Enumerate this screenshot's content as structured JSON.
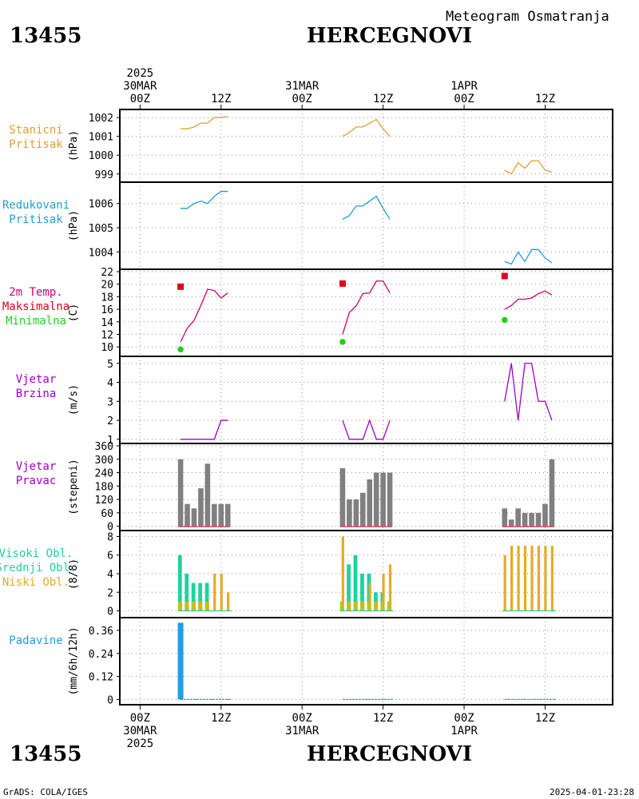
{
  "header": {
    "station_id": "13455",
    "station_name": "HERCEGNOVI",
    "subtitle": "Meteogram Osmatranja"
  },
  "footer": {
    "credit": "GrADS: COLA/IGES",
    "timestamp": "2025-04-01-23:28"
  },
  "time_axis": {
    "top_labels": [
      {
        "t": 0,
        "lines": [
          "2025",
          "30MAR",
          "00Z"
        ]
      },
      {
        "t": 12,
        "lines": [
          "12Z"
        ]
      },
      {
        "t": 24,
        "lines": [
          "31MAR",
          "00Z"
        ]
      },
      {
        "t": 36,
        "lines": [
          "12Z"
        ]
      },
      {
        "t": 48,
        "lines": [
          "1APR",
          "00Z"
        ]
      },
      {
        "t": 60,
        "lines": [
          "12Z"
        ]
      }
    ],
    "bottom_labels": [
      {
        "t": 0,
        "lines": [
          "00Z",
          "30MAR",
          "2025"
        ]
      },
      {
        "t": 12,
        "lines": [
          "12Z"
        ]
      },
      {
        "t": 24,
        "lines": [
          "00Z",
          "31MAR"
        ]
      },
      {
        "t": 36,
        "lines": [
          "12Z"
        ]
      },
      {
        "t": 48,
        "lines": [
          "00Z",
          "1APR"
        ]
      },
      {
        "t": 60,
        "lines": [
          "12Z"
        ]
      }
    ],
    "range_hours": [
      -3,
      70
    ],
    "grid_hours": [
      0,
      12,
      24,
      36,
      48,
      60
    ]
  },
  "colors": {
    "pressure_station": "#e0a030",
    "pressure_reduced": "#1ea0d2",
    "temperature": "#d2006e",
    "tmax": "#e6001e",
    "tmin": "#1ed21e",
    "wind_speed": "#a000c8",
    "wind_dir_bar": "#808080",
    "high_cloud": "#1ed2a0",
    "mid_cloud": "#a0d21e",
    "low_cloud": "#e6aa28",
    "precip": "#1e9fe6",
    "grid": "#909090"
  },
  "chart_data": [
    {
      "type": "line",
      "panel_label": [
        "Stanicni",
        "Pritisak"
      ],
      "ylabel": "(hPa)",
      "yticks": [
        999,
        1000,
        1001,
        1002
      ],
      "ylim": [
        998.65,
        1002.3
      ],
      "series": [
        {
          "segments": [
            [
              [
                6,
                1001.4
              ],
              [
                7,
                1001.4
              ],
              [
                8,
                1001.5
              ],
              [
                9,
                1001.7
              ],
              [
                10,
                1001.7
              ],
              [
                11,
                1002.0
              ],
              [
                12,
                1002.0
              ],
              [
                13,
                1002.05
              ]
            ],
            [
              [
                30,
                1001.0
              ],
              [
                31,
                1001.2
              ],
              [
                32,
                1001.5
              ],
              [
                33,
                1001.5
              ],
              [
                34,
                1001.7
              ],
              [
                35,
                1001.9
              ],
              [
                36,
                1001.4
              ],
              [
                37,
                1001.0
              ]
            ],
            [
              [
                54,
                999.2
              ],
              [
                55,
                999.0
              ],
              [
                56,
                999.6
              ],
              [
                57,
                999.3
              ],
              [
                58,
                999.7
              ],
              [
                59,
                999.7
              ],
              [
                60,
                999.2
              ],
              [
                61,
                999.1
              ]
            ]
          ]
        }
      ]
    },
    {
      "type": "line",
      "panel_label": [
        "Redukovani",
        "Pritisak"
      ],
      "ylabel": "(hPa)",
      "yticks": [
        1004,
        1005,
        1006
      ],
      "ylim": [
        1003.45,
        1006.75
      ],
      "series": [
        {
          "segments": [
            [
              [
                6,
                1005.8
              ],
              [
                7,
                1005.8
              ],
              [
                8,
                1006.0
              ],
              [
                9,
                1006.1
              ],
              [
                10,
                1006.0
              ],
              [
                11,
                1006.3
              ],
              [
                12,
                1006.5
              ],
              [
                13,
                1006.5
              ]
            ],
            [
              [
                30,
                1005.35
              ],
              [
                31,
                1005.5
              ],
              [
                32,
                1005.9
              ],
              [
                33,
                1005.9
              ],
              [
                34,
                1006.1
              ],
              [
                35,
                1006.3
              ],
              [
                36,
                1005.8
              ],
              [
                37,
                1005.35
              ]
            ],
            [
              [
                54,
                1003.6
              ],
              [
                55,
                1003.5
              ],
              [
                56,
                1004.0
              ],
              [
                57,
                1003.6
              ],
              [
                58,
                1004.1
              ],
              [
                59,
                1004.1
              ],
              [
                60,
                1003.75
              ],
              [
                61,
                1003.55
              ]
            ]
          ]
        }
      ]
    },
    {
      "type": "line",
      "panel_label": [
        "2m Temp.",
        "Maksimalna",
        "Minimalna"
      ],
      "ylabel": "(C)",
      "yticks": [
        10,
        12,
        14,
        16,
        18,
        20,
        22
      ],
      "ylim": [
        9.0,
        22.0
      ],
      "series": [
        {
          "segments": [
            [
              [
                6,
                10.8
              ],
              [
                7,
                13.0
              ],
              [
                8,
                14.2
              ],
              [
                9,
                16.6
              ],
              [
                10,
                19.2
              ],
              [
                11,
                19.0
              ],
              [
                12,
                17.8
              ],
              [
                13,
                18.6
              ]
            ],
            [
              [
                30,
                12.0
              ],
              [
                31,
                15.5
              ],
              [
                32,
                16.5
              ],
              [
                33,
                18.5
              ],
              [
                34,
                18.6
              ],
              [
                35,
                20.5
              ],
              [
                36,
                20.5
              ],
              [
                37,
                18.6
              ]
            ],
            [
              [
                54,
                16.0
              ],
              [
                55,
                16.6
              ],
              [
                56,
                17.6
              ],
              [
                57,
                17.6
              ],
              [
                58,
                17.8
              ],
              [
                59,
                18.5
              ],
              [
                60,
                18.9
              ],
              [
                61,
                18.3
              ]
            ]
          ]
        }
      ],
      "max_markers": [
        [
          6,
          19.6
        ],
        [
          30,
          20.1
        ],
        [
          54,
          21.3
        ]
      ],
      "min_markers": [
        [
          6,
          9.6
        ],
        [
          30,
          10.8
        ],
        [
          54,
          14.3
        ]
      ]
    },
    {
      "type": "line",
      "panel_label": [
        "Vjetar",
        "Brzina"
      ],
      "ylabel": "(m/s)",
      "yticks": [
        1,
        2,
        3,
        4,
        5
      ],
      "ylim": [
        0.95,
        5.2
      ],
      "series": [
        {
          "segments": [
            [
              [
                6,
                1
              ],
              [
                7,
                1
              ],
              [
                8,
                1
              ],
              [
                9,
                1
              ],
              [
                10,
                1
              ],
              [
                11,
                1
              ],
              [
                12,
                2
              ],
              [
                13,
                2
              ]
            ],
            [
              [
                30,
                2
              ],
              [
                31,
                1
              ],
              [
                32,
                1
              ],
              [
                33,
                1
              ],
              [
                34,
                2
              ],
              [
                35,
                1
              ],
              [
                36,
                1
              ],
              [
                37,
                2
              ]
            ],
            [
              [
                54,
                3
              ],
              [
                55,
                5
              ],
              [
                56,
                2
              ],
              [
                57,
                5
              ],
              [
                58,
                5
              ],
              [
                59,
                3
              ],
              [
                60,
                3
              ],
              [
                61,
                2
              ]
            ]
          ]
        }
      ]
    },
    {
      "type": "bar",
      "panel_label": [
        "Vjetar",
        "Pravac"
      ],
      "ylabel": "(stepeni)",
      "yticks": [
        0,
        60,
        120,
        180,
        240,
        300,
        360
      ],
      "ylim": [
        -12,
        360
      ],
      "bars": [
        {
          "x": [
            6,
            7,
            8,
            9,
            10,
            11,
            12,
            13
          ],
          "values": [
            300,
            100,
            80,
            170,
            280,
            100,
            100,
            100
          ]
        },
        {
          "x": [
            30,
            31,
            32,
            33,
            34,
            35,
            36,
            37
          ],
          "values": [
            260,
            120,
            120,
            150,
            210,
            240,
            240,
            240
          ]
        },
        {
          "x": [
            54,
            55,
            56,
            57,
            58,
            59,
            60,
            61
          ],
          "values": [
            80,
            30,
            80,
            60,
            60,
            60,
            100,
            300
          ]
        }
      ]
    },
    {
      "type": "bar",
      "panel_label": [
        "Visoki Obl.",
        "Srednji Obl.",
        "Niski Obl."
      ],
      "ylabel": "(8/8)",
      "yticks": [
        0,
        2,
        4,
        6,
        8
      ],
      "ylim": [
        -0.3,
        8.3
      ],
      "high": [
        {
          "x": [
            6,
            7,
            8,
            9,
            10,
            11,
            12,
            13
          ],
          "values": [
            6,
            4,
            3,
            3,
            3,
            0,
            0,
            0
          ]
        },
        {
          "x": [
            30,
            31,
            32,
            33,
            34,
            35,
            36,
            37
          ],
          "values": [
            0,
            5,
            6,
            4,
            4,
            2,
            2,
            1
          ]
        },
        {
          "x": [
            54,
            55,
            56,
            57,
            58,
            59,
            60,
            61
          ],
          "values": [
            0,
            0,
            0,
            0,
            0,
            0,
            0,
            0
          ]
        }
      ],
      "mid": [
        {
          "x": [
            6,
            7,
            8,
            9,
            10,
            11,
            12,
            13
          ],
          "values": [
            1,
            1,
            1,
            1,
            1,
            0,
            0,
            0
          ]
        },
        {
          "x": [
            30,
            31,
            32,
            33,
            34,
            35,
            36,
            37
          ],
          "values": [
            1,
            1,
            1,
            1,
            1,
            1,
            1,
            1
          ]
        },
        {
          "x": [
            54,
            55,
            56,
            57,
            58,
            59,
            60,
            61
          ],
          "values": [
            0,
            0,
            0,
            0,
            0,
            0,
            0,
            0
          ]
        }
      ],
      "low": [
        {
          "x": [
            6,
            7,
            8,
            9,
            10,
            11,
            12,
            13
          ],
          "values": [
            1,
            1,
            1,
            1,
            1,
            4,
            4,
            2
          ]
        },
        {
          "x": [
            30,
            31,
            32,
            33,
            34,
            35,
            36,
            37
          ],
          "values": [
            8,
            1,
            1,
            1,
            3,
            1,
            4,
            5
          ]
        },
        {
          "x": [
            54,
            55,
            56,
            57,
            58,
            59,
            60,
            61
          ],
          "values": [
            6,
            7,
            7,
            7,
            7,
            7,
            7,
            7
          ]
        }
      ]
    },
    {
      "type": "bar",
      "panel_label": [
        "Padavine"
      ],
      "ylabel": "(mm/6h/12h)",
      "yticks": [
        0,
        0.12,
        0.24,
        0.36
      ],
      "ylim": [
        -0.015,
        0.41
      ],
      "bars": [
        {
          "x": [
            6
          ],
          "values": [
            0.4
          ]
        }
      ],
      "zero_lines": [
        [
          6,
          13.5
        ],
        [
          30,
          37.5
        ],
        [
          54,
          61.5
        ]
      ]
    }
  ]
}
